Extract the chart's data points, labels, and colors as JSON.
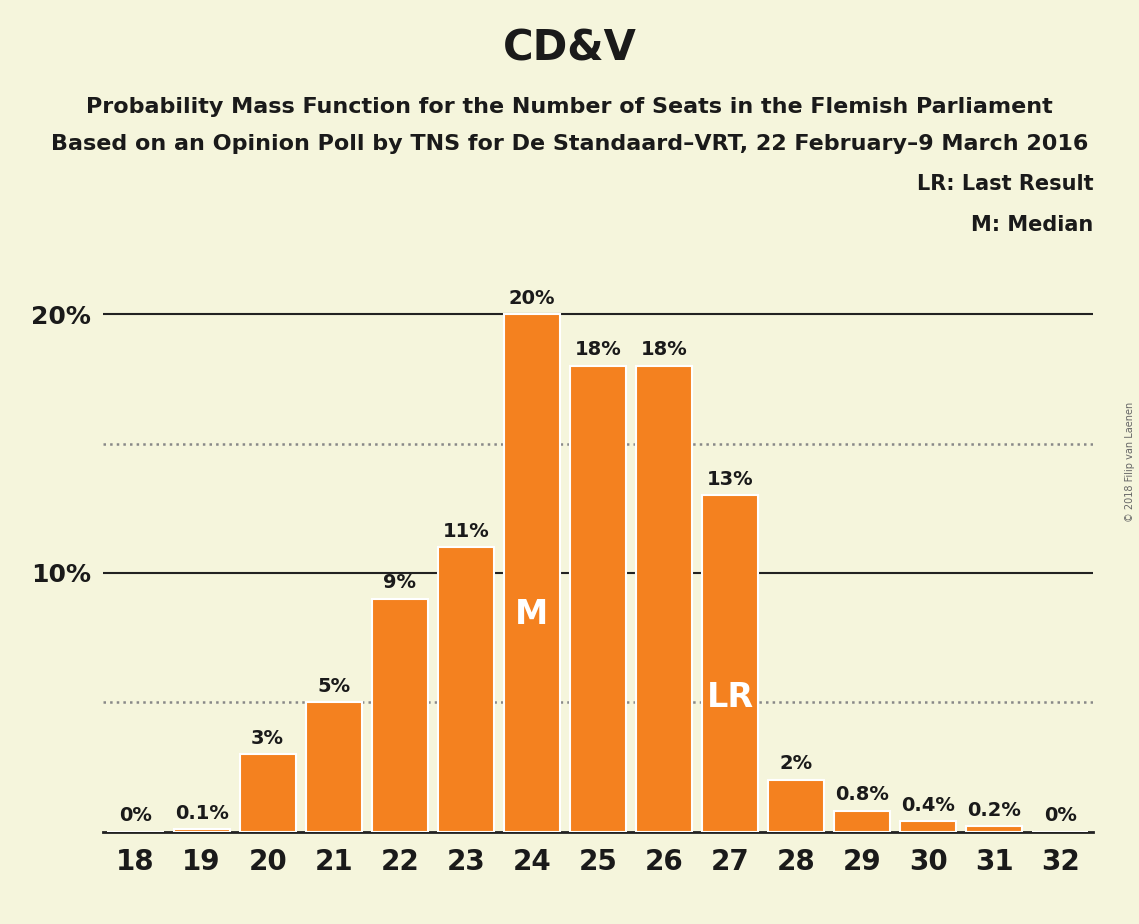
{
  "title": "CD&V",
  "subtitle1": "Probability Mass Function for the Number of Seats in the Flemish Parliament",
  "subtitle2": "Based on an Opinion Poll by TNS for De Standaard–VRT, 22 February–9 March 2016",
  "copyright": "© 2018 Filip van Laenen",
  "seats": [
    18,
    19,
    20,
    21,
    22,
    23,
    24,
    25,
    26,
    27,
    28,
    29,
    30,
    31,
    32
  ],
  "probabilities": [
    0.0,
    0.1,
    3.0,
    5.0,
    9.0,
    11.0,
    20.0,
    18.0,
    18.0,
    13.0,
    2.0,
    0.8,
    0.4,
    0.2,
    0.0
  ],
  "bar_color": "#F4811F",
  "background_color": "#F5F5DC",
  "bar_edge_color": "#FFFFFF",
  "text_color": "#1A1A1A",
  "median_seat": 24,
  "lr_seat": 27,
  "dotted_line_y": [
    5.0,
    15.0
  ],
  "legend_lr": "LR: Last Result",
  "legend_m": "M: Median",
  "bar_label_fontsize": 14,
  "title_fontsize": 30,
  "subtitle_fontsize": 16,
  "tick_fontsize": 20,
  "ytick_fontsize": 18,
  "ylim_max": 22.5
}
